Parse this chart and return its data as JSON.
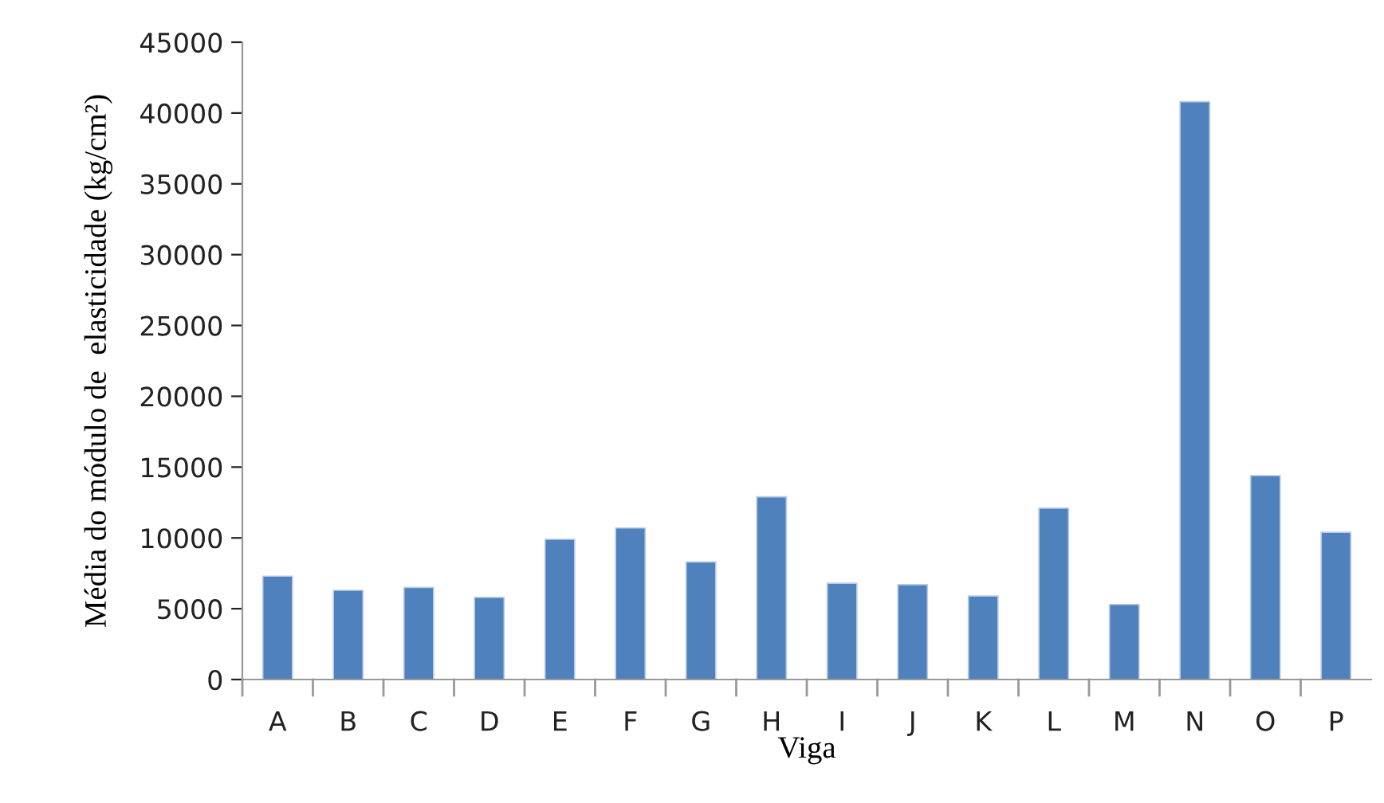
{
  "chart_data": {
    "type": "bar",
    "xlabel": "Viga",
    "ylabel": "Média do módulo de  elasticidade (kg/cm²)",
    "categories": [
      "A",
      "B",
      "C",
      "D",
      "E",
      "F",
      "G",
      "H",
      "I",
      "J",
      "K",
      "L",
      "M",
      "N",
      "O",
      "P"
    ],
    "values": [
      7300,
      6300,
      6500,
      5800,
      9900,
      10700,
      8300,
      12900,
      6800,
      6700,
      5900,
      12100,
      5300,
      40800,
      14400,
      10400
    ],
    "color": "#4f81bd",
    "ylim": [
      0,
      45000
    ],
    "yticks": [
      0,
      5000,
      10000,
      15000,
      20000,
      25000,
      30000,
      35000,
      40000,
      45000
    ],
    "grid": false,
    "legend": false
  }
}
